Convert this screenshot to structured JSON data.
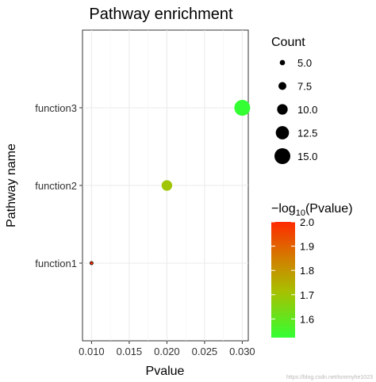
{
  "chart_data": {
    "type": "scatter",
    "title": "Pathway enrichment",
    "xlabel": "Pvalue",
    "ylabel": "Pathway name",
    "xlim": [
      0.0088,
      0.0308
    ],
    "x_ticks": [
      "0.010",
      "0.015",
      "0.020",
      "0.025",
      "0.030"
    ],
    "x_tick_values": [
      0.01,
      0.015,
      0.02,
      0.025,
      0.03
    ],
    "categories": [
      "function1",
      "function2",
      "function3"
    ],
    "points": [
      {
        "category": "function1",
        "pvalue": 0.01,
        "count": 3,
        "neg_log10_p": 2.0
      },
      {
        "category": "function2",
        "pvalue": 0.02,
        "count": 10,
        "neg_log10_p": 1.699
      },
      {
        "category": "function3",
        "pvalue": 0.03,
        "count": 15,
        "neg_log10_p": 1.523
      }
    ],
    "grid": true,
    "size_legend": {
      "title": "Count",
      "entries": [
        "5.0",
        "7.5",
        "10.0",
        "12.5",
        "15.0"
      ],
      "values": [
        5.0,
        7.5,
        10.0,
        12.5,
        15.0
      ]
    },
    "color_legend": {
      "title_prefix": "−log",
      "title_sub": "10",
      "title_suffix": "(Pvalue)",
      "range": [
        1.523,
        2.0
      ],
      "ticks": [
        "2.0",
        "1.9",
        "1.8",
        "1.7",
        "1.6"
      ],
      "tick_values": [
        2.0,
        1.9,
        1.8,
        1.7,
        1.6
      ],
      "colors": {
        "high": "#ff2a00",
        "low": "#33ff33"
      }
    }
  },
  "watermark": "https://blog.csdn.net/tommyhe1023"
}
